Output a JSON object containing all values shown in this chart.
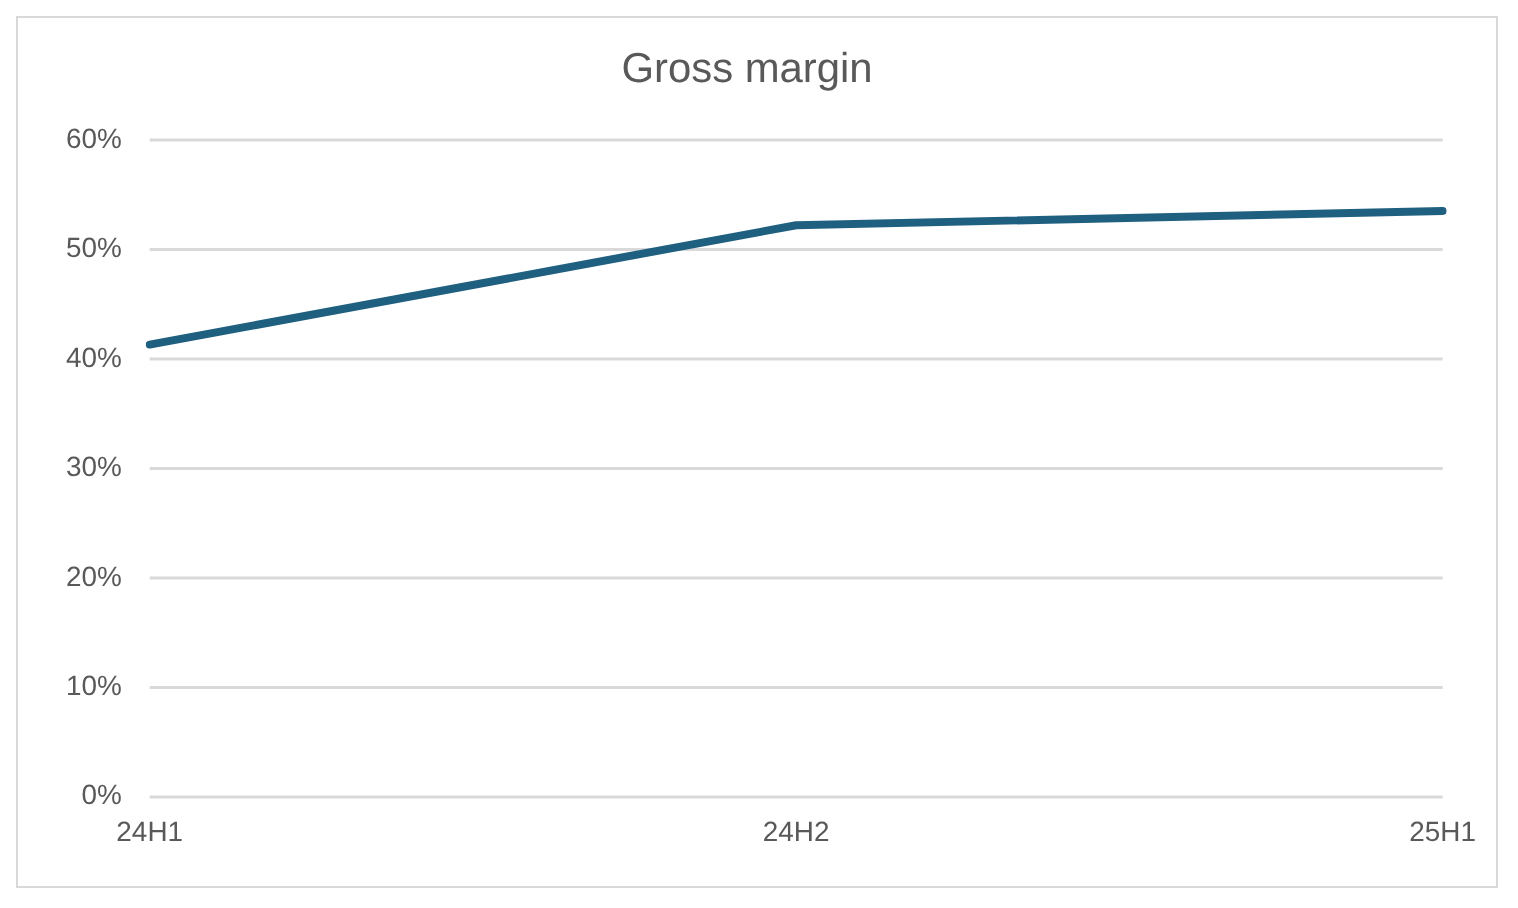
{
  "chart_data": {
    "type": "line",
    "title": "Gross margin",
    "categories": [
      "24H1",
      "24H2",
      "25H1"
    ],
    "series": [
      {
        "color": "#1f5f7f",
        "values": [
          41.3,
          52.2,
          53.5
        ]
      }
    ],
    "ylim": [
      0,
      60
    ],
    "yticks": [
      {
        "value": 0,
        "label": "0%"
      },
      {
        "value": 10,
        "label": "10%"
      },
      {
        "value": 20,
        "label": "20%"
      },
      {
        "value": 30,
        "label": "30%"
      },
      {
        "value": 40,
        "label": "40%"
      },
      {
        "value": 50,
        "label": "50%"
      },
      {
        "value": 60,
        "label": "60%"
      }
    ],
    "grid": "y",
    "legend": false,
    "marker": "none",
    "line_style": "solid"
  }
}
